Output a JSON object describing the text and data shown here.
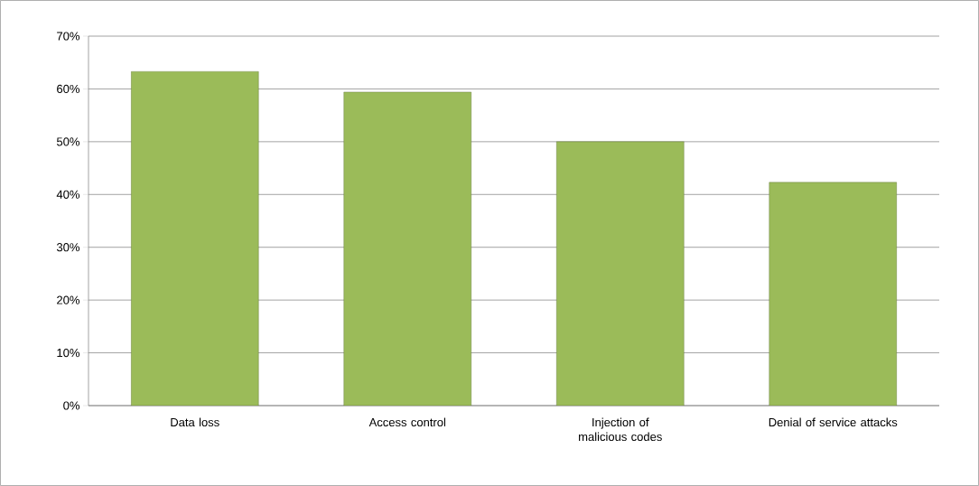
{
  "chart_data": {
    "type": "bar",
    "categories": [
      "Data loss",
      "Access control",
      "Injection of malicious codes",
      "Denial of service attacks"
    ],
    "values": [
      63.3,
      59.4,
      50,
      42.3
    ],
    "color": "#9bbb59",
    "ylim": [
      0,
      70
    ],
    "yticks": [
      {
        "value": 0,
        "label": "0%"
      },
      {
        "value": 10,
        "label": "10%"
      },
      {
        "value": 20,
        "label": "20%"
      },
      {
        "value": 30,
        "label": "30%"
      },
      {
        "value": 40,
        "label": "40%"
      },
      {
        "value": 50,
        "label": "50%"
      },
      {
        "value": 60,
        "label": "60%"
      },
      {
        "value": 70,
        "label": "70%"
      }
    ],
    "grid": "y"
  }
}
